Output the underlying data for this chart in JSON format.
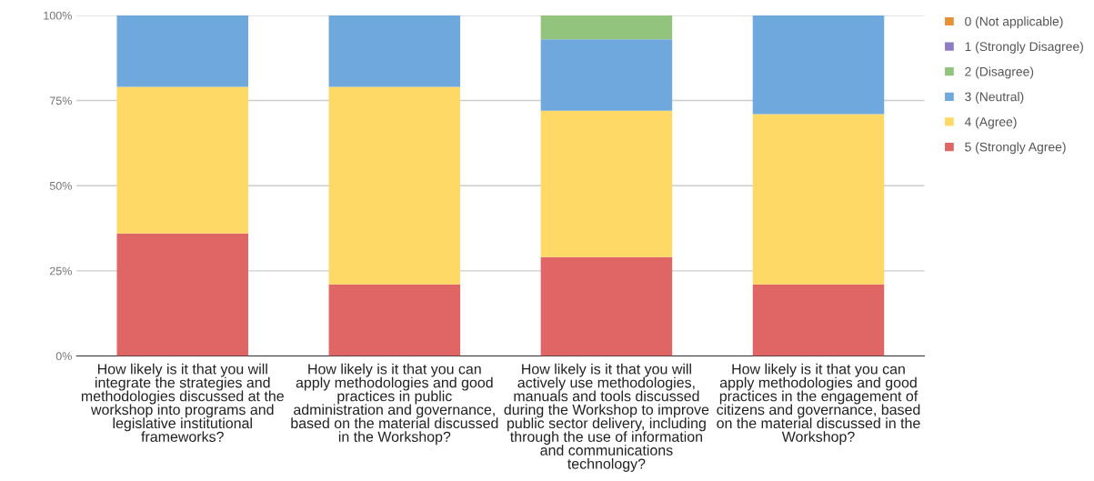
{
  "chart_data": {
    "type": "bar",
    "stacked": true,
    "categories": [
      "How likely is it that you will\nintegrate the strategies and\nmethodologies discussed at the\nworkshop into programs and\nlegislative institutional\nframeworks?",
      "How likely is it that you can\napply methodologies and good\npractices in public\nadministration and governance,\nbased on the material discussed\nin the Workshop?",
      "How likely is it that you will\nactively use methodologies,\nmanuals and tools discussed\nduring the Workshop to improve\npublic sector delivery, including\nthrough the use of information\nand communications\ntechnology?",
      "How likely is it that you can\napply methodologies and good\npractices in the engagement of\ncitizens and governance, based\non the material discussed in the\nWorkshop?"
    ],
    "series": [
      {
        "name": "5 (Strongly Agree)",
        "color": "#e06666",
        "values": [
          36,
          21,
          29,
          21
        ]
      },
      {
        "name": "4 (Agree)",
        "color": "#ffd966",
        "values": [
          43,
          58,
          43,
          50
        ]
      },
      {
        "name": "3 (Neutral)",
        "color": "#6fa8dc",
        "values": [
          21,
          21,
          21,
          29
        ]
      },
      {
        "name": "2 (Disagree)",
        "color": "#93c47d",
        "values": [
          0,
          0,
          7,
          0
        ]
      },
      {
        "name": "1 (Strongly Disagree)",
        "color": "#8e7cc3",
        "values": [
          0,
          0,
          0,
          0
        ]
      },
      {
        "name": "0 (Not applicable)",
        "color": "#e69138",
        "values": [
          0,
          0,
          0,
          0
        ]
      }
    ],
    "ylim": [
      0,
      100
    ],
    "yticks": [
      {
        "value": 0,
        "label": "0%"
      },
      {
        "value": 25,
        "label": "25%"
      },
      {
        "value": 50,
        "label": "50%"
      },
      {
        "value": 75,
        "label": "75%"
      },
      {
        "value": 100,
        "label": "100%"
      }
    ],
    "grid": "y",
    "legend": "top right"
  }
}
